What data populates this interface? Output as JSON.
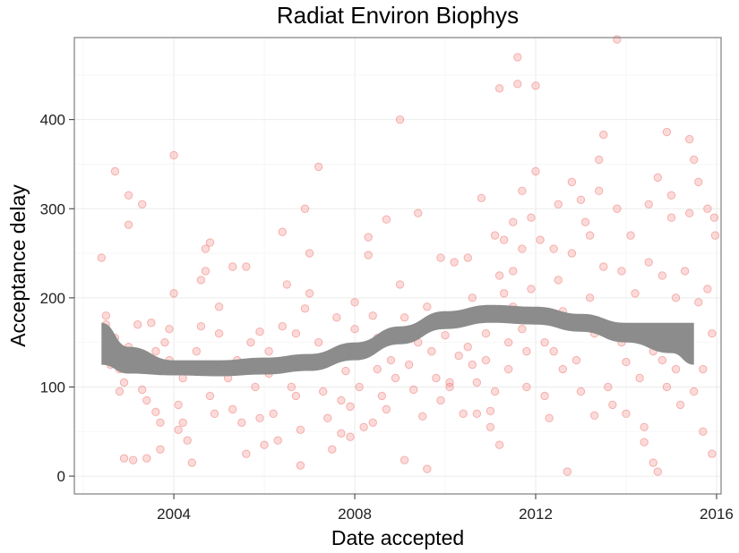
{
  "chart_data": {
    "type": "scatter",
    "title": "Radiat Environ Biophys",
    "xlabel": "Date accepted",
    "ylabel": "Acceptance delay",
    "xlim": [
      2001.8,
      2016.1
    ],
    "ylim": [
      -20,
      492
    ],
    "x_ticks": [
      2004,
      2008,
      2012,
      2016
    ],
    "y_ticks": [
      0,
      100,
      200,
      300,
      400
    ],
    "grid": true,
    "legend": "none",
    "point_color": "#f07c78",
    "band_color": "#8c8c8c",
    "points": [
      [
        2002.4,
        245
      ],
      [
        2002.5,
        180
      ],
      [
        2002.5,
        170
      ],
      [
        2002.6,
        150
      ],
      [
        2002.6,
        125
      ],
      [
        2002.7,
        342
      ],
      [
        2002.7,
        155
      ],
      [
        2002.8,
        120
      ],
      [
        2002.8,
        95
      ],
      [
        2002.9,
        105
      ],
      [
        2002.9,
        20
      ],
      [
        2003.0,
        315
      ],
      [
        2003.0,
        282
      ],
      [
        2003.0,
        145
      ],
      [
        2003.1,
        18
      ],
      [
        2003.2,
        170
      ],
      [
        2003.3,
        305
      ],
      [
        2003.3,
        97
      ],
      [
        2003.4,
        85
      ],
      [
        2003.4,
        20
      ],
      [
        2003.5,
        172
      ],
      [
        2003.6,
        140
      ],
      [
        2003.6,
        72
      ],
      [
        2003.7,
        60
      ],
      [
        2003.7,
        30
      ],
      [
        2003.8,
        150
      ],
      [
        2003.9,
        165
      ],
      [
        2003.9,
        130
      ],
      [
        2004.0,
        360
      ],
      [
        2004.0,
        205
      ],
      [
        2004.1,
        80
      ],
      [
        2004.1,
        52
      ],
      [
        2004.2,
        110
      ],
      [
        2004.2,
        60
      ],
      [
        2004.3,
        40
      ],
      [
        2004.4,
        15
      ],
      [
        2004.5,
        140
      ],
      [
        2004.5,
        125
      ],
      [
        2004.6,
        220
      ],
      [
        2004.6,
        168
      ],
      [
        2004.7,
        255
      ],
      [
        2004.7,
        230
      ],
      [
        2004.8,
        262
      ],
      [
        2004.8,
        90
      ],
      [
        2004.9,
        70
      ],
      [
        2005.0,
        190
      ],
      [
        2005.0,
        160
      ],
      [
        2005.1,
        125
      ],
      [
        2005.2,
        110
      ],
      [
        2005.3,
        235
      ],
      [
        2005.3,
        75
      ],
      [
        2005.4,
        130
      ],
      [
        2005.5,
        60
      ],
      [
        2005.6,
        235
      ],
      [
        2005.6,
        25
      ],
      [
        2005.7,
        150
      ],
      [
        2005.8,
        100
      ],
      [
        2005.9,
        162
      ],
      [
        2005.9,
        65
      ],
      [
        2006.0,
        35
      ],
      [
        2006.1,
        140
      ],
      [
        2006.1,
        115
      ],
      [
        2006.2,
        70
      ],
      [
        2006.3,
        40
      ],
      [
        2006.4,
        274
      ],
      [
        2006.4,
        168
      ],
      [
        2006.5,
        215
      ],
      [
        2006.5,
        130
      ],
      [
        2006.6,
        100
      ],
      [
        2006.7,
        160
      ],
      [
        2006.7,
        90
      ],
      [
        2006.8,
        52
      ],
      [
        2006.8,
        12
      ],
      [
        2006.9,
        300
      ],
      [
        2006.9,
        188
      ],
      [
        2007.0,
        250
      ],
      [
        2007.0,
        205
      ],
      [
        2007.1,
        128
      ],
      [
        2007.2,
        347
      ],
      [
        2007.2,
        150
      ],
      [
        2007.3,
        95
      ],
      [
        2007.4,
        65
      ],
      [
        2007.5,
        30
      ],
      [
        2007.6,
        178
      ],
      [
        2007.6,
        135
      ],
      [
        2007.7,
        85
      ],
      [
        2007.7,
        48
      ],
      [
        2007.8,
        118
      ],
      [
        2007.9,
        78
      ],
      [
        2007.9,
        44
      ],
      [
        2008.0,
        195
      ],
      [
        2008.0,
        165
      ],
      [
        2008.1,
        135
      ],
      [
        2008.1,
        100
      ],
      [
        2008.2,
        55
      ],
      [
        2008.3,
        268
      ],
      [
        2008.3,
        248
      ],
      [
        2008.4,
        180
      ],
      [
        2008.4,
        60
      ],
      [
        2008.5,
        155
      ],
      [
        2008.5,
        120
      ],
      [
        2008.6,
        90
      ],
      [
        2008.7,
        288
      ],
      [
        2008.7,
        75
      ],
      [
        2008.8,
        130
      ],
      [
        2008.9,
        110
      ],
      [
        2009.0,
        400
      ],
      [
        2009.0,
        215
      ],
      [
        2009.1,
        178
      ],
      [
        2009.1,
        18
      ],
      [
        2009.2,
        125
      ],
      [
        2009.3,
        97
      ],
      [
        2009.4,
        295
      ],
      [
        2009.4,
        150
      ],
      [
        2009.5,
        67
      ],
      [
        2009.6,
        190
      ],
      [
        2009.6,
        8
      ],
      [
        2009.7,
        140
      ],
      [
        2009.8,
        110
      ],
      [
        2009.9,
        245
      ],
      [
        2009.9,
        85
      ],
      [
        2010.0,
        158
      ],
      [
        2010.1,
        105
      ],
      [
        2010.1,
        100
      ],
      [
        2010.2,
        240
      ],
      [
        2010.3,
        175
      ],
      [
        2010.3,
        135
      ],
      [
        2010.4,
        70
      ],
      [
        2010.5,
        245
      ],
      [
        2010.5,
        145
      ],
      [
        2010.6,
        200
      ],
      [
        2010.6,
        125
      ],
      [
        2010.7,
        105
      ],
      [
        2010.7,
        70
      ],
      [
        2010.8,
        312
      ],
      [
        2010.8,
        180
      ],
      [
        2010.9,
        160
      ],
      [
        2010.9,
        130
      ],
      [
        2011.0,
        73
      ],
      [
        2011.0,
        55
      ],
      [
        2011.1,
        270
      ],
      [
        2011.1,
        95
      ],
      [
        2011.2,
        435
      ],
      [
        2011.2,
        225
      ],
      [
        2011.2,
        35
      ],
      [
        2011.3,
        265
      ],
      [
        2011.3,
        205
      ],
      [
        2011.4,
        150
      ],
      [
        2011.4,
        120
      ],
      [
        2011.5,
        285
      ],
      [
        2011.5,
        230
      ],
      [
        2011.5,
        190
      ],
      [
        2011.6,
        470
      ],
      [
        2011.6,
        440
      ],
      [
        2011.7,
        320
      ],
      [
        2011.7,
        255
      ],
      [
        2011.7,
        165
      ],
      [
        2011.8,
        140
      ],
      [
        2011.8,
        100
      ],
      [
        2011.9,
        290
      ],
      [
        2011.9,
        210
      ],
      [
        2012.0,
        438
      ],
      [
        2012.0,
        342
      ],
      [
        2012.1,
        265
      ],
      [
        2012.1,
        185
      ],
      [
        2012.2,
        150
      ],
      [
        2012.2,
        90
      ],
      [
        2012.3,
        65
      ],
      [
        2012.4,
        255
      ],
      [
        2012.4,
        140
      ],
      [
        2012.5,
        305
      ],
      [
        2012.5,
        220
      ],
      [
        2012.6,
        185
      ],
      [
        2012.6,
        120
      ],
      [
        2012.7,
        5
      ],
      [
        2012.8,
        330
      ],
      [
        2012.8,
        250
      ],
      [
        2012.9,
        175
      ],
      [
        2012.9,
        130
      ],
      [
        2013.0,
        310
      ],
      [
        2013.0,
        95
      ],
      [
        2013.1,
        285
      ],
      [
        2013.2,
        270
      ],
      [
        2013.2,
        200
      ],
      [
        2013.3,
        160
      ],
      [
        2013.3,
        68
      ],
      [
        2013.4,
        355
      ],
      [
        2013.4,
        320
      ],
      [
        2013.5,
        383
      ],
      [
        2013.5,
        235
      ],
      [
        2013.6,
        160
      ],
      [
        2013.6,
        100
      ],
      [
        2013.7,
        80
      ],
      [
        2013.8,
        490
      ],
      [
        2013.8,
        300
      ],
      [
        2013.9,
        230
      ],
      [
        2013.9,
        150
      ],
      [
        2014.0,
        128
      ],
      [
        2014.0,
        70
      ],
      [
        2014.1,
        270
      ],
      [
        2014.2,
        205
      ],
      [
        2014.2,
        160
      ],
      [
        2014.3,
        110
      ],
      [
        2014.4,
        55
      ],
      [
        2014.4,
        38
      ],
      [
        2014.5,
        305
      ],
      [
        2014.5,
        240
      ],
      [
        2014.6,
        140
      ],
      [
        2014.6,
        15
      ],
      [
        2014.7,
        335
      ],
      [
        2014.7,
        5
      ],
      [
        2014.8,
        225
      ],
      [
        2014.8,
        130
      ],
      [
        2014.9,
        386
      ],
      [
        2014.9,
        100
      ],
      [
        2015.0,
        315
      ],
      [
        2015.0,
        290
      ],
      [
        2015.1,
        200
      ],
      [
        2015.1,
        120
      ],
      [
        2015.2,
        80
      ],
      [
        2015.3,
        230
      ],
      [
        2015.3,
        150
      ],
      [
        2015.4,
        378
      ],
      [
        2015.4,
        295
      ],
      [
        2015.5,
        355
      ],
      [
        2015.5,
        95
      ],
      [
        2015.6,
        330
      ],
      [
        2015.6,
        195
      ],
      [
        2015.7,
        120
      ],
      [
        2015.7,
        50
      ],
      [
        2015.8,
        300
      ],
      [
        2015.8,
        210
      ],
      [
        2015.9,
        160
      ],
      [
        2015.9,
        25
      ],
      [
        2015.95,
        290
      ],
      [
        2015.97,
        270
      ]
    ],
    "smooth_band": [
      {
        "x": 2002.4,
        "lo": 125,
        "hi": 172
      },
      {
        "x": 2003.0,
        "lo": 115,
        "hi": 145
      },
      {
        "x": 2004.0,
        "lo": 113,
        "hi": 130
      },
      {
        "x": 2005.0,
        "lo": 112,
        "hi": 130
      },
      {
        "x": 2006.0,
        "lo": 114,
        "hi": 133
      },
      {
        "x": 2007.0,
        "lo": 118,
        "hi": 137
      },
      {
        "x": 2008.0,
        "lo": 130,
        "hi": 150
      },
      {
        "x": 2009.0,
        "lo": 148,
        "hi": 168
      },
      {
        "x": 2010.0,
        "lo": 165,
        "hi": 185
      },
      {
        "x": 2011.0,
        "lo": 172,
        "hi": 192
      },
      {
        "x": 2012.0,
        "lo": 170,
        "hi": 190
      },
      {
        "x": 2013.0,
        "lo": 162,
        "hi": 182
      },
      {
        "x": 2014.0,
        "lo": 150,
        "hi": 172
      },
      {
        "x": 2015.0,
        "lo": 138,
        "hi": 172
      },
      {
        "x": 2015.5,
        "lo": 125,
        "hi": 172
      }
    ]
  }
}
